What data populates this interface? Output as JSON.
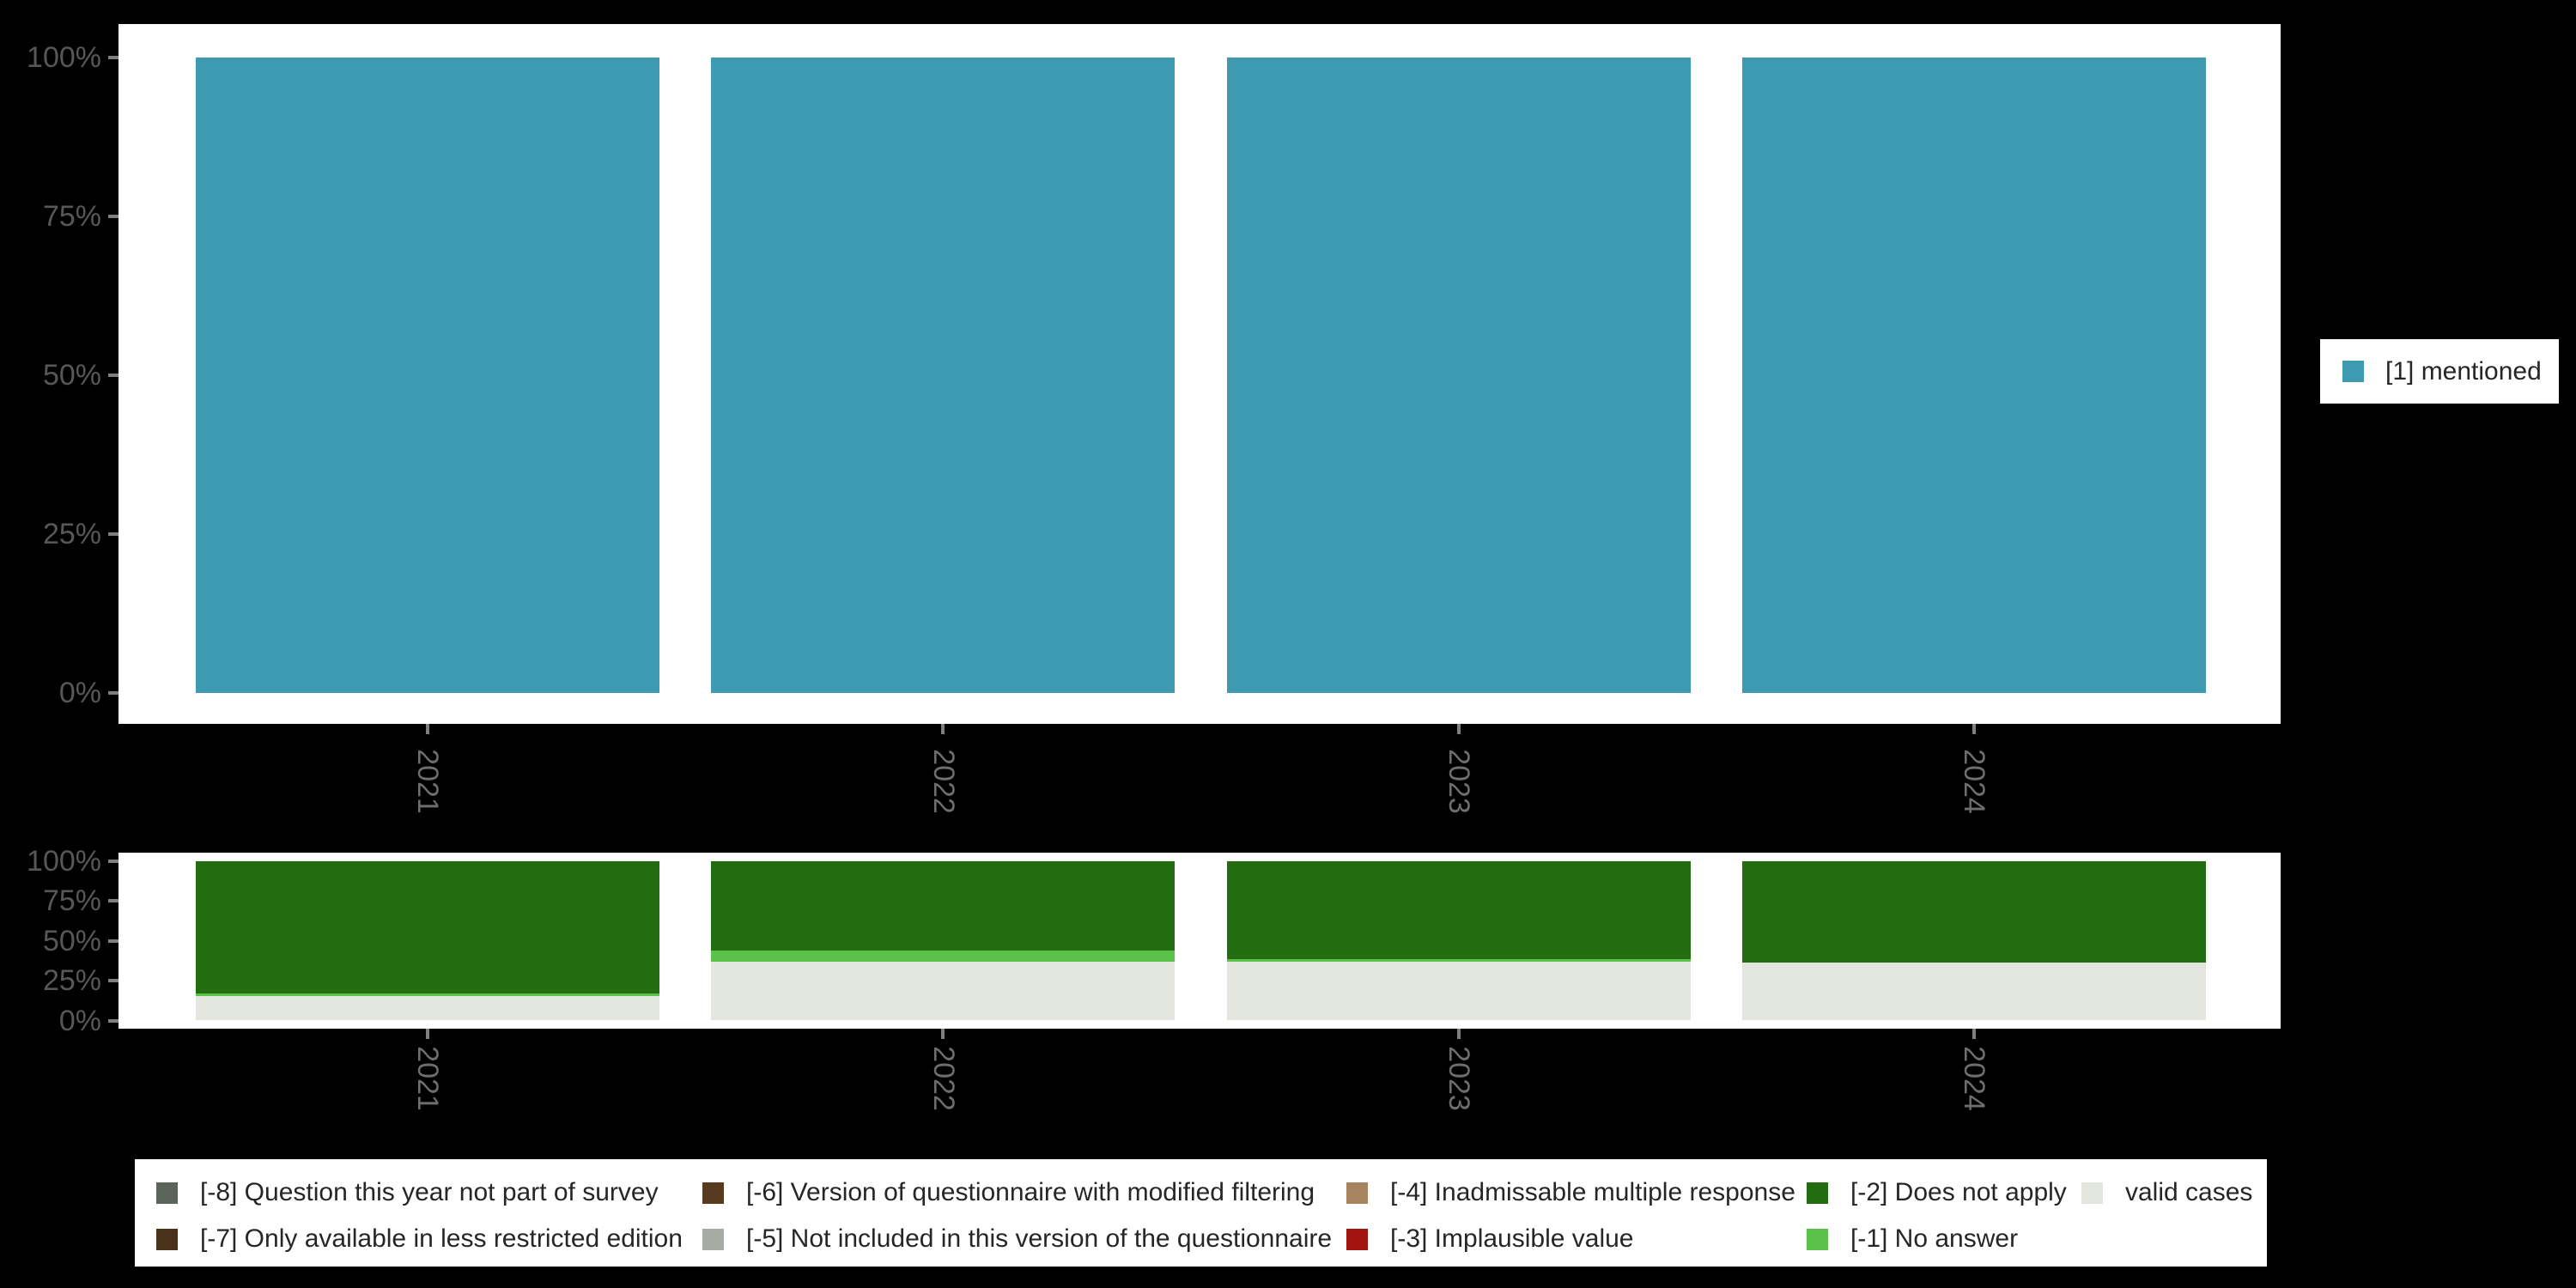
{
  "colors": {
    "background": "#000000",
    "panel_background": "#ffffff",
    "mentioned_teal": "#3d9ab1",
    "does_not_apply_green": "#216d10",
    "no_answer_light_green": "#5cc14b",
    "valid_cases_gray": "#e2e6de",
    "axis_tick": "#7f7f7f",
    "axis_percent_text": "#575757",
    "axis_year_text": "#6e6e6e",
    "legend_text": "#262626"
  },
  "chart_data": [
    {
      "type": "bar",
      "stacked": true,
      "title": "",
      "xlabel": "",
      "ylabel": "",
      "categories": [
        "2021",
        "2022",
        "2023",
        "2024"
      ],
      "y_ticks": [
        "100%",
        "75%",
        "50%",
        "25%",
        "0%"
      ],
      "ylim": [
        0,
        100
      ],
      "grid": false,
      "legend_position": "right",
      "series": [
        {
          "name": "[1] mentioned",
          "color": "#3d9ab1",
          "values": [
            100,
            100,
            100,
            100
          ]
        }
      ]
    },
    {
      "type": "bar",
      "stacked": true,
      "title": "",
      "xlabel": "",
      "ylabel": "",
      "categories": [
        "2021",
        "2022",
        "2023",
        "2024"
      ],
      "y_ticks": [
        "100%",
        "75%",
        "50%",
        "25%",
        "0%"
      ],
      "ylim": [
        0,
        100
      ],
      "grid": false,
      "legend_position": "bottom",
      "series": [
        {
          "name": "[-2] Does not apply",
          "color": "#216d10",
          "values": [
            83,
            56,
            61.5,
            63.5
          ]
        },
        {
          "name": "[-1] No answer",
          "color": "#5cc14b",
          "values": [
            1.5,
            7,
            1.5,
            0
          ]
        },
        {
          "name": "valid cases",
          "color": "#e2e6de",
          "values": [
            15.5,
            37,
            37,
            36.5
          ]
        }
      ]
    }
  ],
  "legend_bottom": {
    "items": [
      {
        "label": "[-8] Question this year not part of survey",
        "color": "#5c655c"
      },
      {
        "label": "[-7] Only available in less restricted edition",
        "color": "#49311b"
      },
      {
        "label": "[-6] Version of questionnaire with modified filtering",
        "color": "#583a1f"
      },
      {
        "label": "[-5] Not included in this version of the questionnaire",
        "color": "#a6aba4"
      },
      {
        "label": "[-4] Inadmissable multiple response",
        "color": "#a8845e"
      },
      {
        "label": "[-3] Implausible value",
        "color": "#a2140f"
      },
      {
        "label": "[-2] Does not apply",
        "color": "#216d10"
      },
      {
        "label": "[-1] No answer",
        "color": "#5cc14b"
      },
      {
        "label": "valid cases",
        "color": "#e2e6de"
      }
    ]
  }
}
